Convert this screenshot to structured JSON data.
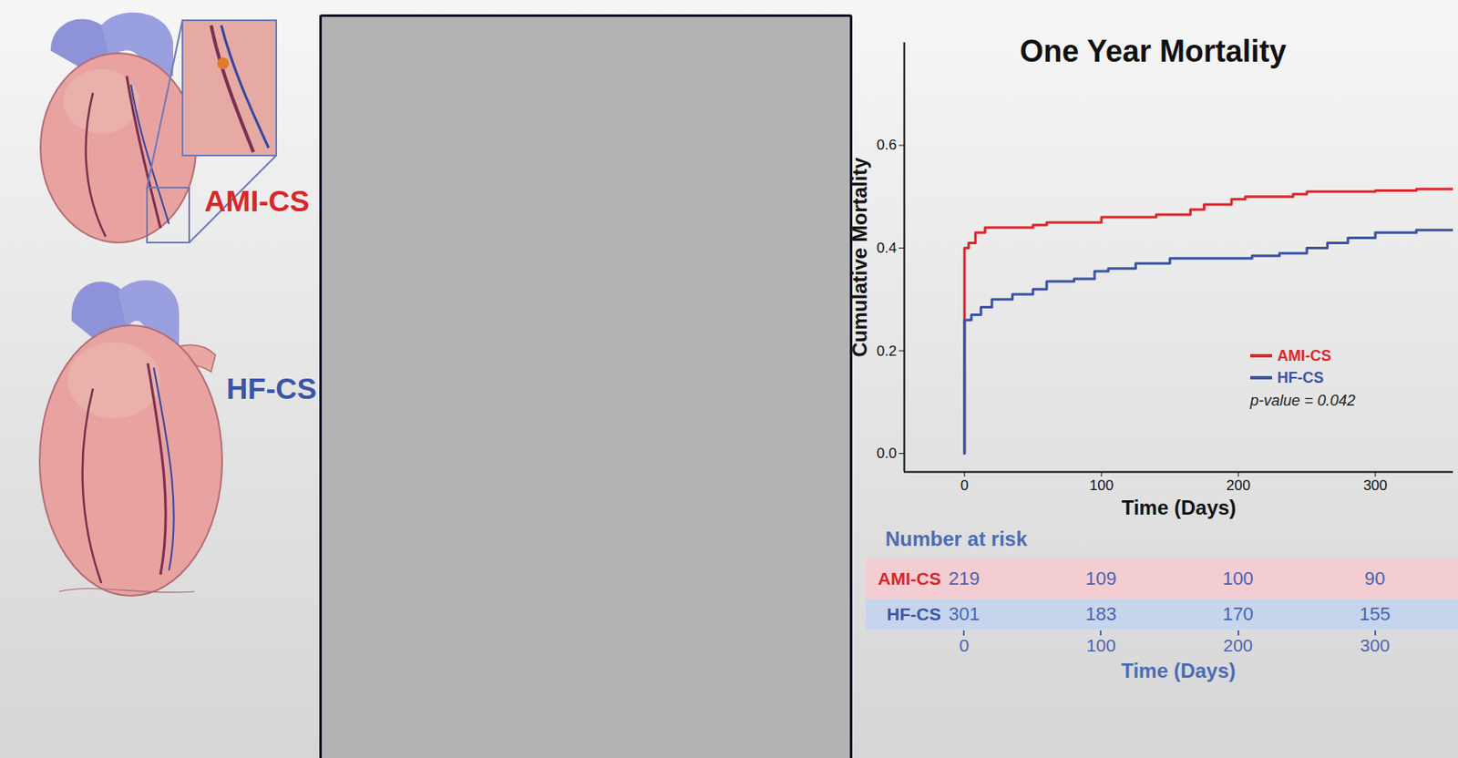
{
  "illustration": {
    "labels": [
      {
        "text": "AMI-CS",
        "color": "#d7262b"
      },
      {
        "text": "HF-CS",
        "color": "#3b55a5"
      }
    ]
  },
  "chart_data": {
    "type": "line",
    "title": "One Year Mortality",
    "x_label": "Time (Days)",
    "y_label": "Cumulative Mortality",
    "xlim": [
      -44,
      357
    ],
    "ylim": [
      -0.036,
      0.8
    ],
    "xticks": [
      0,
      100,
      200,
      300
    ],
    "yticks": [
      {
        "value": 0,
        "label": "0.0"
      },
      {
        "value": 0.2,
        "label": "0.2"
      },
      {
        "value": 0.4,
        "label": "0.4"
      },
      {
        "value": 0.6,
        "label": "0.6"
      }
    ],
    "grid": false,
    "legend": "lower right",
    "line_style": "solid",
    "annotations": [
      "p-value = 0.042"
    ],
    "series": [
      {
        "name": "AMI-CS",
        "color": "#e0262a",
        "x": [
          0,
          0,
          3,
          8,
          15,
          50,
          60,
          100,
          140,
          165,
          175,
          195,
          205,
          240,
          250,
          300,
          330,
          357
        ],
        "values": [
          0,
          0.4,
          0.41,
          0.43,
          0.44,
          0.445,
          0.45,
          0.46,
          0.465,
          0.475,
          0.485,
          0.495,
          0.5,
          0.505,
          0.51,
          0.512,
          0.515,
          0.515
        ]
      },
      {
        "name": "HF-CS",
        "color": "#3a53a4",
        "x": [
          0,
          0,
          5,
          12,
          20,
          35,
          50,
          60,
          80,
          95,
          105,
          125,
          150,
          180,
          210,
          230,
          250,
          265,
          280,
          300,
          330,
          357
        ],
        "values": [
          0,
          0.26,
          0.27,
          0.285,
          0.3,
          0.31,
          0.32,
          0.335,
          0.34,
          0.355,
          0.36,
          0.37,
          0.38,
          0.38,
          0.385,
          0.39,
          0.4,
          0.41,
          0.42,
          0.43,
          0.435,
          0.435
        ]
      }
    ]
  },
  "risk_table": {
    "title": "Number at risk",
    "x_label": "Time (Days)",
    "times": [
      0,
      100,
      200,
      300
    ],
    "rows": [
      {
        "name": "AMI-CS",
        "color": "#d7262b",
        "values": [
          219,
          109,
          100,
          90
        ]
      },
      {
        "name": "HF-CS",
        "color": "#3b55a5",
        "values": [
          301,
          183,
          170,
          155
        ]
      }
    ]
  }
}
